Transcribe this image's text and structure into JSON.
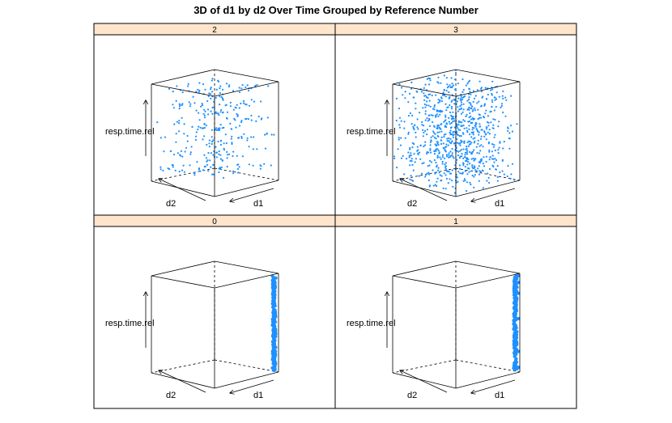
{
  "chart_data": {
    "type": "scatter",
    "subtype": "3d-cloud-lattice",
    "title": "3D of d1 by d2 Over Time Grouped by Reference Number",
    "axes": {
      "x": "d1",
      "y": "d2",
      "z": "resp.time.rel"
    },
    "layout": {
      "columns": 2,
      "rows": 2
    },
    "colors": {
      "points": "#1e90ff",
      "strip": "#ffe5cc",
      "box": "#000000"
    },
    "panels": [
      {
        "label": "2",
        "pattern": "bands",
        "point_count": 320
      },
      {
        "label": "3",
        "pattern": "uniform",
        "point_count": 850
      },
      {
        "label": "0",
        "pattern": "column",
        "point_count": 250
      },
      {
        "label": "1",
        "pattern": "column-outliers",
        "point_count": 250
      }
    ]
  }
}
